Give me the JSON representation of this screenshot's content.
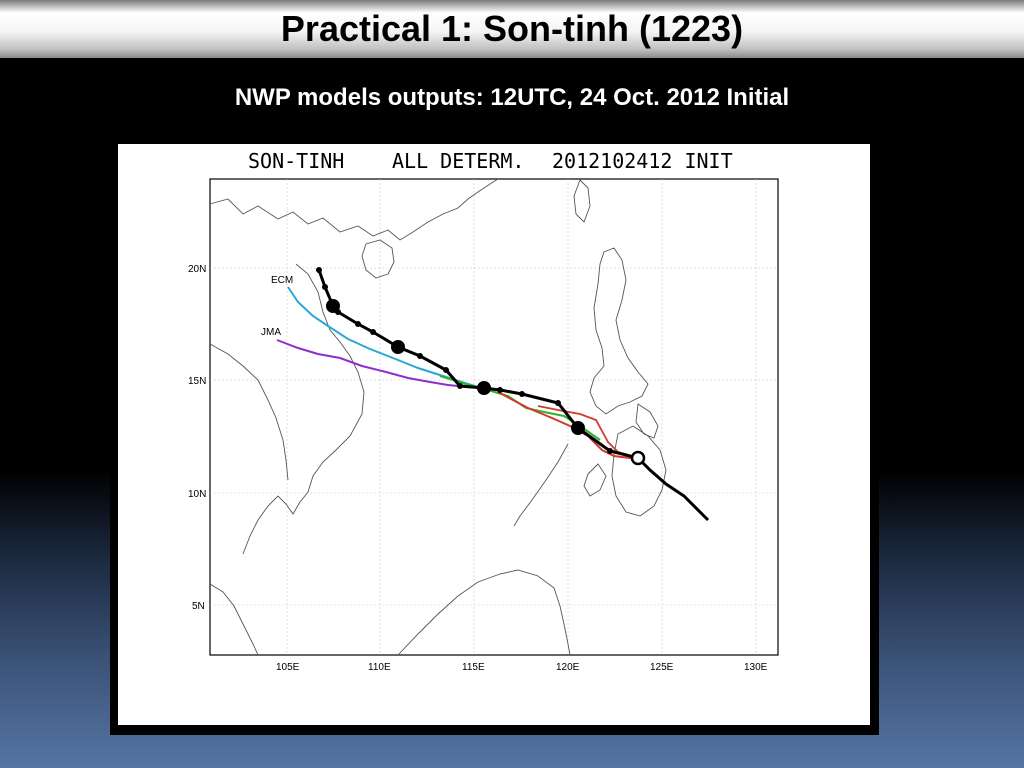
{
  "slide": {
    "title": "Practical 1: Son-tinh (1223)",
    "subtitle": "NWP models outputs: 12UTC, 24 Oct. 2012 Initial"
  },
  "map": {
    "title_storm": "SON-TINH",
    "title_type": "ALL DETERM.",
    "title_init": "2012102412 INIT",
    "lon_labels": [
      "105E",
      "110E",
      "115E",
      "120E",
      "125E",
      "130E"
    ],
    "lat_labels": [
      "20N",
      "15N",
      "10N",
      "5N"
    ],
    "model_labels": {
      "ecm": "ECM",
      "jma": "JMA"
    },
    "colors": {
      "black_track": "#000000",
      "ecm": "#2aa7d6",
      "jma": "#8b2fc9",
      "green": "#2bb52b",
      "red": "#d23a2a"
    }
  }
}
